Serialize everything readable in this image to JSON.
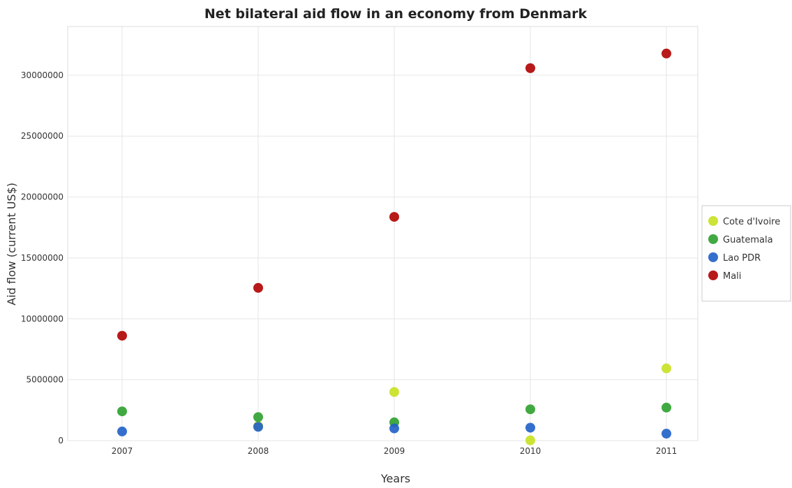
{
  "chart_data": {
    "type": "scatter",
    "title": "Net bilateral aid flow in an economy from Denmark",
    "xlabel": "Years",
    "ylabel": "Aid flow (current US$)",
    "categories": [
      "2007",
      "2008",
      "2009",
      "2010",
      "2011"
    ],
    "ylim": [
      0,
      34000000
    ],
    "yticks": [
      0,
      5000000,
      10000000,
      15000000,
      20000000,
      25000000,
      30000000
    ],
    "ytick_labels": [
      "0",
      "5000000",
      "10000000",
      "15000000",
      "20000000",
      "25000000",
      "30000000"
    ],
    "grid": true,
    "legend_position": "right",
    "series": [
      {
        "name": "Cote d'Ivoire",
        "color": "#c8e020",
        "values": [
          null,
          1200000,
          3990000,
          20000,
          5930000
        ]
      },
      {
        "name": "Guatemala",
        "color": "#2ca02c",
        "values": [
          2400000,
          1930000,
          1500000,
          2570000,
          2710000
        ]
      },
      {
        "name": "Lao PDR",
        "color": "#1f5fc8",
        "values": [
          750000,
          1130000,
          1000000,
          1060000,
          570000
        ]
      },
      {
        "name": "Mali",
        "color": "#b00000",
        "values": [
          8610000,
          12540000,
          18370000,
          30580000,
          31780000
        ]
      }
    ]
  }
}
